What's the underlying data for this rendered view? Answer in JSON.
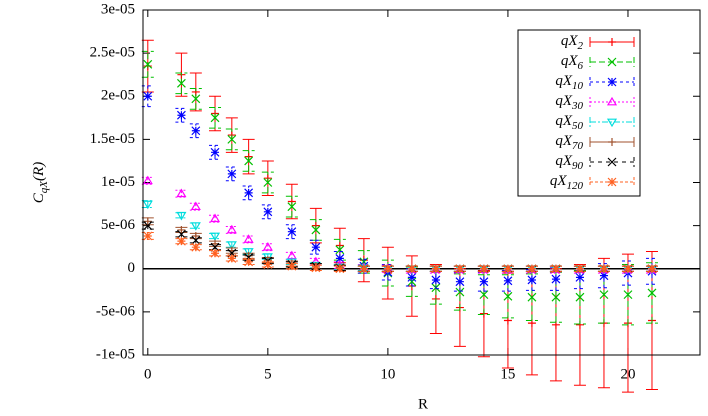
{
  "chart_data": {
    "type": "scatter",
    "xlabel": "R",
    "ylabel": "CqX(R)",
    "xlim": [
      -0.2,
      23
    ],
    "ylim": [
      -1e-05,
      3e-05
    ],
    "xticks": [
      0,
      5,
      10,
      15,
      20
    ],
    "yticks": [
      {
        "value": -1e-05,
        "label": "-1e-05"
      },
      {
        "value": -5e-06,
        "label": "-5e-06"
      },
      0,
      {
        "value": 5e-06,
        "label": "5e-06"
      },
      {
        "value": 1e-05,
        "label": "1e-05"
      },
      {
        "value": 1.5e-05,
        "label": "1.5e-05"
      },
      {
        "value": 2e-05,
        "label": "2e-05"
      },
      {
        "value": 2.5e-05,
        "label": "2.5e-05"
      },
      {
        "value": 3e-05,
        "label": "3e-05"
      }
    ],
    "x": [
      0,
      1.4,
      2,
      2.8,
      3.5,
      4.2,
      5,
      6,
      7,
      8,
      9,
      10,
      11,
      12,
      13,
      14,
      15,
      16,
      17,
      18,
      19,
      20,
      21
    ],
    "series": [
      {
        "name": "qX2",
        "color": "#ff0000",
        "values": [
          2.35e-05,
          2.25e-05,
          2.05e-05,
          1.8e-05,
          1.55e-05,
          1.3e-05,
          1.05e-05,
          7.8e-06,
          5e-06,
          2.7e-06,
          1e-06,
          -5e-07,
          -2e-06,
          -3.5e-06,
          -4.5e-06,
          -5.2e-06,
          -6e-06,
          -6.3e-06,
          -6.5e-06,
          -6.5e-06,
          -6.3e-06,
          -6.3e-06,
          -6e-06
        ],
        "errors": [
          3e-06,
          2.5e-06,
          2.2e-06,
          2e-06,
          2e-06,
          2e-06,
          2e-06,
          2e-06,
          2e-06,
          2e-06,
          2.5e-06,
          3e-06,
          3.5e-06,
          4e-06,
          4.5e-06,
          5e-06,
          5.5e-06,
          6e-06,
          6.5e-06,
          7e-06,
          7.5e-06,
          8e-06,
          8e-06
        ]
      },
      {
        "name": "qX6",
        "color": "#00c000",
        "values": [
          2.37e-05,
          2.15e-05,
          1.97e-05,
          1.75e-05,
          1.5e-05,
          1.25e-05,
          1e-05,
          7.2e-06,
          4.5e-06,
          2.2e-06,
          8e-07,
          -5e-07,
          -1.5e-06,
          -2.2e-06,
          -2.7e-06,
          -3e-06,
          -3.2e-06,
          -3.3e-06,
          -3.3e-06,
          -3.3e-06,
          -3e-06,
          -3e-06,
          -2.8e-06
        ],
        "errors": [
          1.5e-06,
          1.2e-06,
          1.2e-06,
          1.2e-06,
          1.2e-06,
          1.2e-06,
          1.2e-06,
          1.2e-06,
          1.2e-06,
          1.2e-06,
          1.3e-06,
          1.5e-06,
          1.7e-06,
          1.9e-06,
          2.1e-06,
          2.3e-06,
          2.5e-06,
          2.7e-06,
          2.9e-06,
          3.1e-06,
          3.3e-06,
          3.5e-06,
          3.5e-06
        ]
      },
      {
        "name": "qX10",
        "color": "#0000ff",
        "values": [
          2e-05,
          1.78e-05,
          1.6e-05,
          1.35e-05,
          1.1e-05,
          8.8e-06,
          6.6e-06,
          4.3e-06,
          2.5e-06,
          1.2e-06,
          3e-07,
          -4e-07,
          -1e-06,
          -1.3e-06,
          -1.5e-06,
          -1.5e-06,
          -1.4e-06,
          -1.3e-06,
          -1.2e-06,
          -1e-06,
          -8e-07,
          -5e-07,
          -3e-07
        ],
        "errors": [
          1.2e-06,
          8e-07,
          8e-07,
          8e-07,
          8e-07,
          8e-07,
          8e-07,
          8e-07,
          8e-07,
          8e-07,
          8e-07,
          9e-07,
          1e-06,
          1e-06,
          1.1e-06,
          1.1e-06,
          1.2e-06,
          1.2e-06,
          1.3e-06,
          1.3e-06,
          1.4e-06,
          1.4e-06,
          1.5e-06
        ]
      },
      {
        "name": "qX30",
        "color": "#ff00ff",
        "values": [
          1.02e-05,
          8.7e-06,
          7.2e-06,
          5.8e-06,
          4.5e-06,
          3.4e-06,
          2.5e-06,
          1.5e-06,
          8e-07,
          4e-07,
          1e-07,
          0,
          -1e-07,
          -1e-07,
          -1e-07,
          -1e-07,
          -1e-07,
          -1e-07,
          -1e-07,
          -1e-07,
          -1e-07,
          -1e-07,
          -1e-07
        ],
        "errors": [
          4e-07,
          4e-07,
          4e-07,
          4e-07,
          4e-07,
          4e-07,
          4e-07,
          4e-07,
          4e-07,
          4e-07,
          4e-07,
          4e-07,
          4e-07,
          4e-07,
          4e-07,
          4e-07,
          4e-07,
          4e-07,
          4e-07,
          4e-07,
          4e-07,
          4e-07,
          4e-07
        ]
      },
      {
        "name": "qX50",
        "color": "#00dddd",
        "values": [
          7.5e-06,
          6.2e-06,
          5e-06,
          3.8e-06,
          2.8e-06,
          2e-06,
          1.4e-06,
          8e-07,
          4e-07,
          2e-07,
          1e-07,
          0,
          0,
          0,
          0,
          0,
          0,
          0,
          0,
          0,
          0,
          0,
          0
        ],
        "errors": [
          4e-07,
          3e-07,
          3e-07,
          3e-07,
          3e-07,
          3e-07,
          3e-07,
          3e-07,
          3e-07,
          3e-07,
          3e-07,
          3e-07,
          3e-07,
          3e-07,
          3e-07,
          3e-07,
          3e-07,
          3e-07,
          3e-07,
          3e-07,
          3e-07,
          3e-07,
          3e-07
        ]
      },
      {
        "name": "qX70",
        "color": "#a0522d",
        "values": [
          5.5e-06,
          4.5e-06,
          3.8e-06,
          2.9e-06,
          2.1e-06,
          1.5e-06,
          1e-06,
          6e-07,
          3e-07,
          1e-07,
          0,
          0,
          0,
          0,
          0,
          0,
          0,
          0,
          0,
          0,
          0,
          0,
          0
        ],
        "errors": [
          4e-07,
          3e-07,
          3e-07,
          3e-07,
          3e-07,
          3e-07,
          3e-07,
          3e-07,
          3e-07,
          3e-07,
          3e-07,
          3e-07,
          3e-07,
          3e-07,
          3e-07,
          3e-07,
          3e-07,
          3e-07,
          3e-07,
          3e-07,
          3e-07,
          3e-07,
          3e-07
        ]
      },
      {
        "name": "qX90",
        "color": "#000000",
        "values": [
          5e-06,
          4e-06,
          3.3e-06,
          2.5e-06,
          1.8e-06,
          1.3e-06,
          9e-07,
          5e-07,
          3e-07,
          1e-07,
          0,
          0,
          0,
          0,
          0,
          0,
          0,
          0,
          0,
          0,
          0,
          0,
          0
        ],
        "errors": [
          4e-07,
          3e-07,
          3e-07,
          3e-07,
          3e-07,
          3e-07,
          3e-07,
          3e-07,
          3e-07,
          3e-07,
          3e-07,
          3e-07,
          3e-07,
          3e-07,
          3e-07,
          3e-07,
          3e-07,
          3e-07,
          3e-07,
          3e-07,
          3e-07,
          3e-07,
          3e-07
        ]
      },
      {
        "name": "qX120",
        "color": "#ff6020",
        "values": [
          3.8e-06,
          3.2e-06,
          2.5e-06,
          1.8e-06,
          1.2e-06,
          8e-07,
          5e-07,
          3e-07,
          1e-07,
          0,
          0,
          0,
          0,
          0,
          0,
          0,
          0,
          0,
          0,
          0,
          0,
          0,
          0
        ],
        "errors": [
          4e-07,
          3e-07,
          3e-07,
          3e-07,
          3e-07,
          3e-07,
          3e-07,
          3e-07,
          3e-07,
          3e-07,
          3e-07,
          3e-07,
          3e-07,
          3e-07,
          3e-07,
          3e-07,
          3e-07,
          3e-07,
          3e-07,
          3e-07,
          3e-07,
          3e-07,
          3e-07
        ]
      }
    ]
  }
}
